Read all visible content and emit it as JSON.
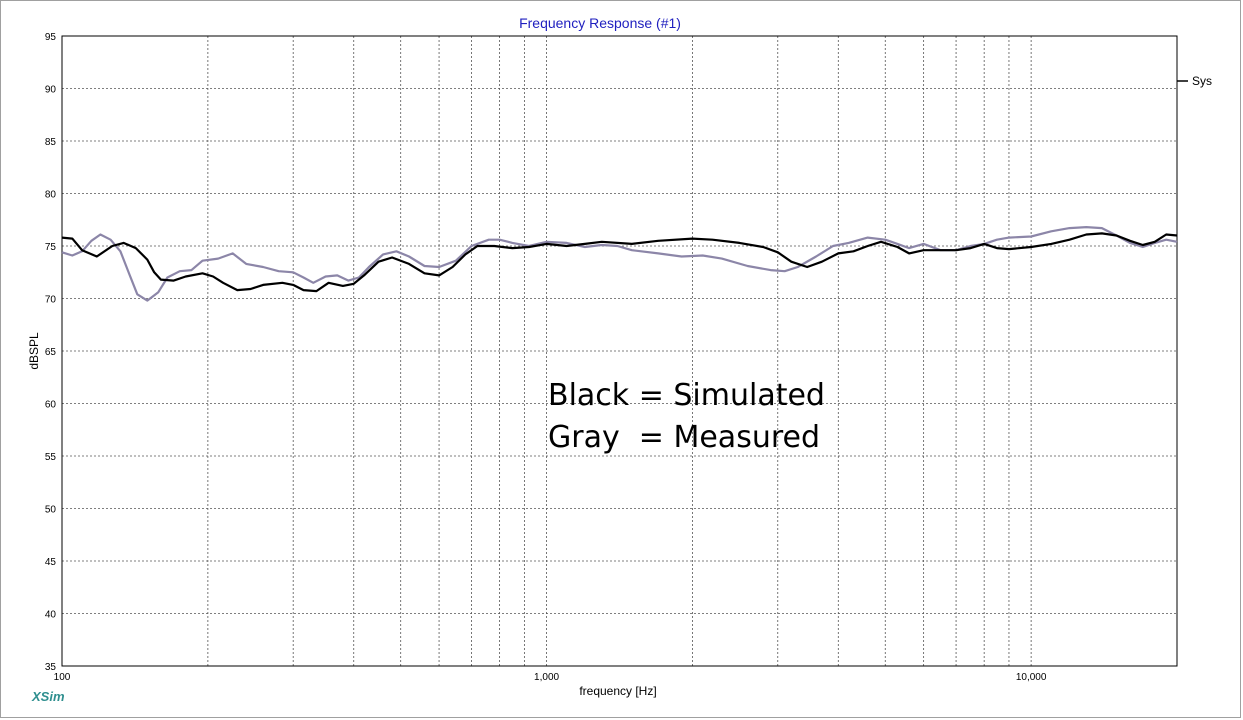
{
  "app": {
    "brand": "XSim"
  },
  "chart_data": {
    "type": "line",
    "title": "Frequency Response (#1)",
    "xlabel": "frequency [Hz]",
    "ylabel": "dBSPL",
    "xscale": "log",
    "xlim": [
      100,
      20000
    ],
    "ylim": [
      35,
      95
    ],
    "yticks": [
      35,
      40,
      45,
      50,
      55,
      60,
      65,
      70,
      75,
      80,
      85,
      90,
      95
    ],
    "xtick_labels": [
      {
        "value": 100,
        "label": "100"
      },
      {
        "value": 1000,
        "label": "1,000"
      },
      {
        "value": 10000,
        "label": "10,000"
      }
    ],
    "grid": true,
    "legend": {
      "position": "right",
      "entries": [
        "Sys"
      ]
    },
    "annotations": [
      "Black = Simulated",
      "Gray  = Measured"
    ],
    "series": [
      {
        "name": "Sys",
        "color": "#000000",
        "points": [
          [
            100,
            75.8
          ],
          [
            105,
            75.7
          ],
          [
            110,
            74.6
          ],
          [
            118,
            74.0
          ],
          [
            127,
            75.0
          ],
          [
            134,
            75.3
          ],
          [
            142,
            74.8
          ],
          [
            150,
            73.7
          ],
          [
            155,
            72.5
          ],
          [
            160,
            71.8
          ],
          [
            170,
            71.7
          ],
          [
            180,
            72.1
          ],
          [
            195,
            72.4
          ],
          [
            205,
            72.1
          ],
          [
            215,
            71.5
          ],
          [
            230,
            70.8
          ],
          [
            245,
            70.9
          ],
          [
            260,
            71.3
          ],
          [
            285,
            71.5
          ],
          [
            300,
            71.3
          ],
          [
            315,
            70.8
          ],
          [
            335,
            70.7
          ],
          [
            355,
            71.5
          ],
          [
            380,
            71.2
          ],
          [
            400,
            71.4
          ],
          [
            420,
            72.2
          ],
          [
            450,
            73.5
          ],
          [
            480,
            73.9
          ],
          [
            520,
            73.3
          ],
          [
            560,
            72.4
          ],
          [
            600,
            72.2
          ],
          [
            640,
            73.0
          ],
          [
            680,
            74.2
          ],
          [
            720,
            75.0
          ],
          [
            780,
            75.0
          ],
          [
            850,
            74.8
          ],
          [
            920,
            74.9
          ],
          [
            1000,
            75.2
          ],
          [
            1100,
            75.0
          ],
          [
            1200,
            75.2
          ],
          [
            1300,
            75.4
          ],
          [
            1500,
            75.2
          ],
          [
            1700,
            75.5
          ],
          [
            2000,
            75.7
          ],
          [
            2200,
            75.6
          ],
          [
            2500,
            75.3
          ],
          [
            2800,
            74.9
          ],
          [
            3000,
            74.4
          ],
          [
            3200,
            73.5
          ],
          [
            3450,
            73.0
          ],
          [
            3700,
            73.5
          ],
          [
            4000,
            74.3
          ],
          [
            4300,
            74.5
          ],
          [
            4600,
            75.0
          ],
          [
            4900,
            75.4
          ],
          [
            5300,
            74.9
          ],
          [
            5600,
            74.3
          ],
          [
            6000,
            74.6
          ],
          [
            6500,
            74.6
          ],
          [
            7000,
            74.6
          ],
          [
            7500,
            74.8
          ],
          [
            8000,
            75.2
          ],
          [
            8500,
            74.8
          ],
          [
            9000,
            74.7
          ],
          [
            10000,
            74.9
          ],
          [
            11000,
            75.2
          ],
          [
            12000,
            75.6
          ],
          [
            13000,
            76.1
          ],
          [
            14000,
            76.2
          ],
          [
            15000,
            76.0
          ],
          [
            16000,
            75.5
          ],
          [
            17000,
            75.1
          ],
          [
            18000,
            75.4
          ],
          [
            19000,
            76.1
          ],
          [
            20000,
            76.0
          ]
        ]
      },
      {
        "name": "Measured",
        "color": "#8c86a8",
        "points": [
          [
            100,
            74.4
          ],
          [
            105,
            74.1
          ],
          [
            110,
            74.5
          ],
          [
            115,
            75.5
          ],
          [
            120,
            76.1
          ],
          [
            126,
            75.6
          ],
          [
            132,
            74.5
          ],
          [
            138,
            72.2
          ],
          [
            143,
            70.4
          ],
          [
            150,
            69.8
          ],
          [
            158,
            70.6
          ],
          [
            165,
            72.0
          ],
          [
            175,
            72.6
          ],
          [
            185,
            72.7
          ],
          [
            195,
            73.6
          ],
          [
            210,
            73.8
          ],
          [
            225,
            74.3
          ],
          [
            240,
            73.3
          ],
          [
            260,
            73.0
          ],
          [
            280,
            72.6
          ],
          [
            300,
            72.5
          ],
          [
            315,
            72.0
          ],
          [
            330,
            71.5
          ],
          [
            350,
            72.1
          ],
          [
            370,
            72.2
          ],
          [
            390,
            71.7
          ],
          [
            410,
            72.0
          ],
          [
            430,
            73.0
          ],
          [
            460,
            74.2
          ],
          [
            490,
            74.5
          ],
          [
            520,
            74.0
          ],
          [
            560,
            73.1
          ],
          [
            600,
            73.0
          ],
          [
            650,
            73.6
          ],
          [
            700,
            75.0
          ],
          [
            760,
            75.6
          ],
          [
            800,
            75.6
          ],
          [
            850,
            75.3
          ],
          [
            920,
            75.0
          ],
          [
            1000,
            75.4
          ],
          [
            1100,
            75.3
          ],
          [
            1200,
            74.9
          ],
          [
            1300,
            75.1
          ],
          [
            1400,
            75.0
          ],
          [
            1500,
            74.6
          ],
          [
            1700,
            74.3
          ],
          [
            1900,
            74.0
          ],
          [
            2100,
            74.1
          ],
          [
            2300,
            73.8
          ],
          [
            2600,
            73.1
          ],
          [
            2900,
            72.7
          ],
          [
            3100,
            72.6
          ],
          [
            3300,
            73.0
          ],
          [
            3600,
            74.0
          ],
          [
            3900,
            75.0
          ],
          [
            4200,
            75.3
          ],
          [
            4600,
            75.8
          ],
          [
            5000,
            75.6
          ],
          [
            5300,
            75.2
          ],
          [
            5600,
            74.8
          ],
          [
            6000,
            75.2
          ],
          [
            6500,
            74.6
          ],
          [
            7000,
            74.6
          ],
          [
            7500,
            75.0
          ],
          [
            8000,
            75.2
          ],
          [
            8500,
            75.6
          ],
          [
            9000,
            75.8
          ],
          [
            10000,
            75.9
          ],
          [
            11000,
            76.4
          ],
          [
            12000,
            76.7
          ],
          [
            13000,
            76.8
          ],
          [
            14000,
            76.7
          ],
          [
            15000,
            76.0
          ],
          [
            16000,
            75.3
          ],
          [
            17000,
            74.9
          ],
          [
            18000,
            75.3
          ],
          [
            19000,
            75.6
          ],
          [
            20000,
            75.4
          ]
        ]
      }
    ]
  }
}
